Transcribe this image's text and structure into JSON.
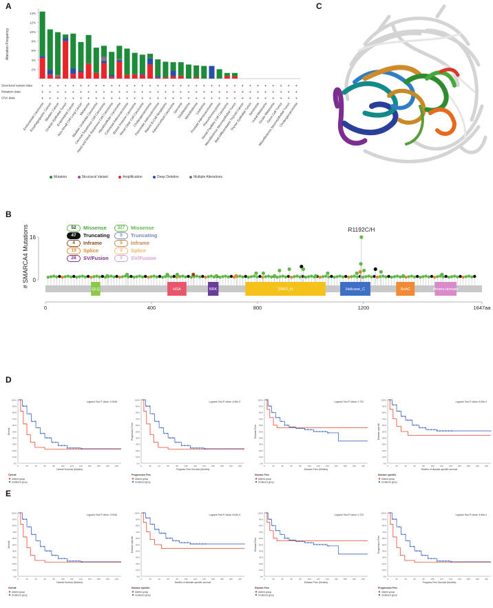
{
  "panels": {
    "a": "A",
    "b": "B",
    "c": "C",
    "d": "D",
    "e": "E"
  },
  "colors": {
    "mutation": "#1e8b3a",
    "structural": "#a34a9a",
    "amplification": "#e8252b",
    "deep_deletion": "#2a4ea6",
    "multiple": "#7a7a7a",
    "missense": "#5fb846",
    "truncating": "#111111",
    "inframe": "#8a4a1f",
    "splice": "#e08a2a",
    "svfusion": "#7b2e8e",
    "altered": "#e8452b",
    "unaltered": "#3f69c4"
  },
  "chart_data": [
    {
      "type": "bar",
      "stacked": true,
      "title": "",
      "ylabel": "Alteration Frequency",
      "ylim": [
        0,
        15
      ],
      "yticks": [
        "2%",
        "4%",
        "6%",
        "8%",
        "10%",
        "12%",
        "14%"
      ],
      "categories": [
        "Endometrial Carcinoma",
        "Esophagogastric Cancer",
        "Bladder Cancer",
        "Ovarian Epithelial Tumor",
        "Endometrial Cancer",
        "Non-Small Cell Lung Cancer",
        "Melanoma",
        "Bladder Urothelial Carcinoma",
        "Cervical Squamous Cell Carcinoma",
        "Head and Neck Squamous Cell Carcinoma",
        "Hepatocellular Carcinoma",
        "Colorectal Adenocarcinoma",
        "Breast Invasive Carcinoma",
        "Renal Clear Cell Carcinoma",
        "Cholangiocarcinoma",
        "Pancreatic Adenocarcinoma",
        "Mature B-Cell Neoplasms",
        "Adrenocortical Carcinoma",
        "Sarcoma",
        "Glioblastoma",
        "Mesothelioma",
        "Leukemia",
        "Prostate Adenocarcinoma",
        "Pheochromocytoma",
        "Renal Papillary Cell Carcinoma",
        "Miscellaneous Neuroepithelial Tumor",
        "Well-Differentiated Thyroid Cancer",
        "Thymic Epithelial Tumor",
        "Seminoma",
        "Uveal Melanoma",
        "Ocular Melanoma",
        "Germ Cell Tumor",
        "Miscellaneous Neuroepithelial Tumor",
        "Cholangiocarcinoma"
      ],
      "series": [
        {
          "name": "Mutation",
          "values": [
            9.5,
            8.6,
            9.1,
            0.8,
            7.4,
            6.1,
            6.1,
            5.4,
            2.4,
            4.9,
            2.8,
            5.6,
            4.6,
            4.1,
            1.0,
            3.6,
            3.3,
            1.8,
            2.9,
            3.0,
            2.5,
            2.7,
            0,
            2.0,
            0.6,
            0.7,
            0,
            0,
            0,
            0,
            0,
            0,
            0,
            0
          ]
        },
        {
          "name": "Structural Variant",
          "values": [
            0,
            0,
            0,
            0,
            0,
            0,
            0,
            0,
            0.3,
            0,
            0,
            0,
            0,
            0,
            0,
            0,
            0,
            0,
            0,
            0,
            0,
            0,
            0,
            0,
            0,
            0,
            0,
            0,
            0,
            0,
            0,
            0,
            0,
            0
          ]
        },
        {
          "name": "Amplification",
          "values": [
            4.4,
            0.9,
            0.4,
            8.0,
            1.0,
            1.4,
            3.2,
            1.2,
            3.3,
            0.4,
            3.6,
            0.8,
            0.9,
            0.8,
            3.0,
            0.2,
            0.3,
            0.5,
            0.6,
            0,
            0.3,
            0,
            0,
            0,
            0.6,
            0.5,
            0,
            0,
            0,
            0,
            0,
            0,
            0,
            0
          ]
        },
        {
          "name": "Deep Deletion",
          "values": [
            0.4,
            1.0,
            0,
            0.6,
            1.2,
            0.3,
            0,
            0,
            0.5,
            0.4,
            0.3,
            0,
            0,
            0.2,
            1.3,
            0.3,
            0,
            1.2,
            0,
            0,
            0,
            0,
            2.7,
            0,
            0,
            0,
            0,
            0,
            0,
            0,
            0,
            0,
            0,
            0
          ]
        },
        {
          "name": "Multiple Alterations",
          "values": [
            0,
            0,
            0.4,
            0,
            0,
            0,
            0,
            0,
            0.5,
            0,
            0.3,
            0,
            0,
            0,
            0,
            0,
            0,
            0,
            0,
            0,
            0,
            0,
            0,
            0,
            0,
            0,
            0,
            0,
            0,
            0,
            0,
            0,
            0,
            0
          ]
        }
      ],
      "track_labels": [
        "Structural variant data",
        "Mutation data",
        "CNA data"
      ],
      "legend": [
        "Mutation",
        "Structural Variant",
        "Amplification",
        "Deep Deletion",
        "Multiple Alterations"
      ]
    },
    {
      "type": "lollipop",
      "ylabel": "# SMARCA4 Mutations",
      "ymax_label": "16",
      "ymin_label": "0",
      "xlim": [
        0,
        1647
      ],
      "xticks": [
        "0",
        "400",
        "800",
        "1200",
        "1647aa"
      ],
      "hotspot_label": "R1192C/H",
      "domains": [
        {
          "name": "QLQ",
          "start": 172,
          "end": 207,
          "color": "#8cc94a"
        },
        {
          "name": "HSA",
          "start": 460,
          "end": 532,
          "color": "#e8566b"
        },
        {
          "name": "BRK",
          "start": 613,
          "end": 653,
          "color": "#6a3d99"
        },
        {
          "name": "SNF2_N",
          "start": 754,
          "end": 1057,
          "color": "#f5c21b"
        },
        {
          "name": "Helicase_C",
          "start": 1112,
          "end": 1226,
          "color": "#3d6fc4"
        },
        {
          "name": "SnAC",
          "start": 1323,
          "end": 1393,
          "color": "#f08a34"
        },
        {
          "name": "Bromo-domain",
          "start": 1469,
          "end": 1551,
          "color": "#d98ac8"
        }
      ],
      "legend_left": [
        {
          "count": "52",
          "label": "Missense"
        },
        {
          "count": "47",
          "label": "Truncating"
        },
        {
          "count": "4",
          "label": "Inframe"
        },
        {
          "count": "19",
          "label": "Splice"
        },
        {
          "count": "28",
          "label": "SV/Fusion"
        }
      ],
      "legend_right": [
        {
          "count": "327",
          "label": "Missense"
        },
        {
          "count": "0",
          "label": "Truncating"
        },
        {
          "count": "5",
          "label": "Inframe"
        },
        {
          "count": "0",
          "label": "Splice"
        },
        {
          "count": "0",
          "label": "SV/Fusion"
        }
      ],
      "tall_lollipops": [
        {
          "pos": 1192,
          "count": 16,
          "kind": "missense"
        },
        {
          "pos": 1190,
          "count": 6,
          "kind": "missense"
        },
        {
          "pos": 1245,
          "count": 4,
          "kind": "truncating"
        },
        {
          "pos": 966,
          "count": 5,
          "kind": "truncating"
        },
        {
          "pos": 920,
          "count": 4,
          "kind": "missense"
        },
        {
          "pos": 883,
          "count": 3.5,
          "kind": "missense"
        },
        {
          "pos": 973,
          "count": 4,
          "kind": "missense"
        },
        {
          "pos": 1202,
          "count": 3.5,
          "kind": "missense"
        },
        {
          "pos": 1266,
          "count": 3,
          "kind": "missense"
        },
        {
          "pos": 1175,
          "count": 2.5,
          "kind": "missense"
        },
        {
          "pos": 1065,
          "count": 2.5,
          "kind": "missense"
        },
        {
          "pos": 822,
          "count": 2.5,
          "kind": "missense"
        },
        {
          "pos": 795,
          "count": 2.5,
          "kind": "missense"
        },
        {
          "pos": 558,
          "count": 2,
          "kind": "inframe"
        },
        {
          "pos": 497,
          "count": 2,
          "kind": "missense"
        },
        {
          "pos": 460,
          "count": 2,
          "kind": "missense"
        },
        {
          "pos": 308,
          "count": 2,
          "kind": "missense"
        },
        {
          "pos": 234,
          "count": 1.5,
          "kind": "missense"
        },
        {
          "pos": 1188,
          "count": 3,
          "kind": "splice"
        },
        {
          "pos": 720,
          "count": 1.5,
          "kind": "splice"
        },
        {
          "pos": 1496,
          "count": 2,
          "kind": "missense"
        },
        {
          "pos": 1020,
          "count": 1.5,
          "kind": "missense"
        },
        {
          "pos": 645,
          "count": 1.5,
          "kind": "missense"
        },
        {
          "pos": 1350,
          "count": 1.5,
          "kind": "missense"
        },
        {
          "pos": 864,
          "count": 1.5,
          "kind": "missense"
        }
      ]
    }
  ],
  "km_row_d": [
    {
      "ylabel": "Overall",
      "xlabel": "Overall Survival (Months)",
      "ptext": "Logrank Test P-Value: 0.0046",
      "legend_title": "Overall",
      "legend": [
        "Altered group",
        "Unaltered group"
      ]
    },
    {
      "ylabel": "Progression Free",
      "xlabel": "Progress Free Survival (Months)",
      "ptext": "Logrank Test P-Value: 4.66e-3",
      "legend_title": "Progression Free",
      "legend": [
        "Altered group",
        "Unaltered group"
      ]
    },
    {
      "ylabel": "Disease Free",
      "xlabel": "Disease Free (Months)",
      "ptext": "Logrank Test P-Value: 0.720",
      "legend_title": "Disease Free",
      "legend": [
        "Altered group",
        "Unaltered group"
      ]
    },
    {
      "ylabel": "Disease specific",
      "xlabel": "Months of disease-specific survival",
      "ptext": "Logrank Test P-Value: 8.63e-3",
      "legend_title": "Disease specific",
      "legend": [
        "Altered group",
        "Unaltered group"
      ]
    }
  ],
  "km_row_e": [
    {
      "ylabel": "Overall",
      "xlabel": "Overall Survival (Months)",
      "ptext": "Logrank Test P-Value: 0.0046",
      "legend_title": "Overall",
      "legend": [
        "Altered group",
        "Unaltered group"
      ]
    },
    {
      "ylabel": "Disease specific",
      "xlabel": "Months of disease-specific survival",
      "ptext": "Logrank Test P-Value: 8.63e-3",
      "legend_title": "Disease specific",
      "legend": [
        "Altered group",
        "Unaltered group"
      ]
    },
    {
      "ylabel": "Disease Free",
      "xlabel": "Disease Free (Months)",
      "ptext": "Logrank Test P-Value: 0.720",
      "legend_title": "Disease Free",
      "legend": [
        "Altered group",
        "Unaltered group"
      ]
    },
    {
      "ylabel": "Progression Free",
      "xlabel": "Progress Free Survival (Months)",
      "ptext": "Logrank Test P-Value: 4.66e-3",
      "legend_title": "Progression Free",
      "legend": [
        "Altered group",
        "Unaltered group"
      ]
    }
  ],
  "km_yticks": [
    "0%",
    "10%",
    "20%",
    "30%",
    "40%",
    "50%",
    "60%",
    "70%",
    "80%",
    "90%",
    "100%"
  ],
  "km_xticks": [
    "0",
    "20",
    "40",
    "60",
    "80",
    "100",
    "120",
    "140",
    "160",
    "180",
    "200",
    "220"
  ]
}
